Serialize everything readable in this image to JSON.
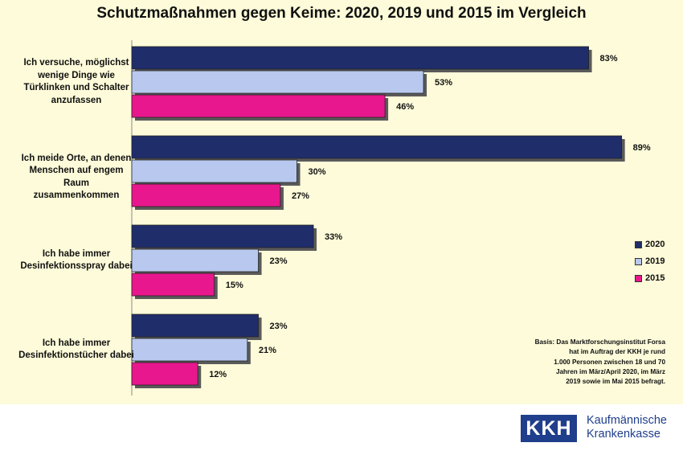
{
  "chart_data": {
    "type": "bar",
    "orientation": "horizontal",
    "title": "Schutzmaßnahmen gegen Keime: 2020, 2019 und 2015 im Vergleich",
    "categories": [
      [
        "Ich versuche, möglichst",
        "wenige Dinge wie",
        "Türklinken und Schalter",
        "anzufassen"
      ],
      [
        "Ich meide Orte, an denen",
        "Menschen auf engem Raum",
        "zusammenkommen"
      ],
      [
        "Ich habe immer",
        "Desinfektionsspray dabei"
      ],
      [
        "Ich habe immer",
        "Desinfektionstücher dabei"
      ]
    ],
    "series": [
      {
        "name": "2020",
        "color": "#1f2d6b",
        "values": [
          83,
          89,
          33,
          23
        ],
        "labels": [
          "83%",
          "89%",
          "33%",
          "23%"
        ]
      },
      {
        "name": "2019",
        "color": "#b8c8ee",
        "values": [
          53,
          30,
          23,
          21
        ],
        "labels": [
          "53%",
          "30%",
          "23%",
          "21%"
        ]
      },
      {
        "name": "2015",
        "color": "#e8178d",
        "values": [
          46,
          27,
          15,
          12
        ],
        "labels": [
          "46%",
          "27%",
          "15%",
          "12%"
        ]
      }
    ],
    "xlim": [
      0,
      100
    ],
    "grid": false,
    "legend_position": "right"
  },
  "source_note": [
    "Basis: Das Marktforschungsinstitut Forsa",
    "hat im Auftrag der KKH je rund",
    "1.000 Personen zwischen 18 und 70",
    "Jahren im März/April 2020, im März",
    "2019 sowie im Mai 2015 befragt."
  ],
  "logo": {
    "abbr": "KKH",
    "line1": "Kaufmännische",
    "line2": "Krankenkasse"
  }
}
